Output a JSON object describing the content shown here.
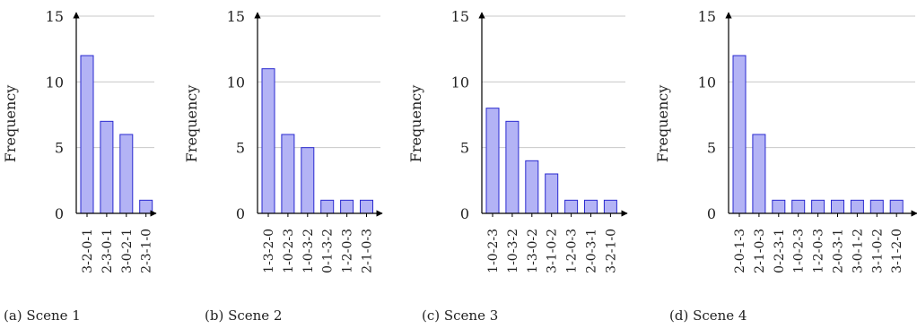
{
  "style": {
    "bar_fill": "#b3b3f5",
    "bar_stroke": "#2a2ad0",
    "grid_color": "#c8c8c8",
    "axis_color": "#000000"
  },
  "chart_data": [
    {
      "type": "bar",
      "caption": "(a) Scene 1",
      "ylabel": "Frequency",
      "ylim": [
        0,
        15
      ],
      "yticks": [
        0,
        5,
        10,
        15
      ],
      "grid": true,
      "categories": [
        "3-2-0-1",
        "2-3-0-1",
        "3-0-2-1",
        "2-3-1-0"
      ],
      "values": [
        12,
        7,
        6,
        1
      ]
    },
    {
      "type": "bar",
      "caption": "(b) Scene 2",
      "ylabel": "Frequency",
      "ylim": [
        0,
        15
      ],
      "yticks": [
        0,
        5,
        10,
        15
      ],
      "grid": true,
      "categories": [
        "1-3-2-0",
        "1-0-2-3",
        "1-0-3-2",
        "0-1-3-2",
        "1-2-0-3",
        "2-1-0-3"
      ],
      "values": [
        11,
        6,
        5,
        1,
        1,
        1
      ]
    },
    {
      "type": "bar",
      "caption": "(c) Scene 3",
      "ylabel": "Frequency",
      "ylim": [
        0,
        15
      ],
      "yticks": [
        0,
        5,
        10,
        15
      ],
      "grid": true,
      "categories": [
        "1-0-2-3",
        "1-0-3-2",
        "1-3-0-2",
        "3-1-0-2",
        "1-2-0-3",
        "2-0-3-1",
        "3-2-1-0"
      ],
      "values": [
        8,
        7,
        4,
        3,
        1,
        1,
        1
      ]
    },
    {
      "type": "bar",
      "caption": "(d) Scene 4",
      "ylabel": "Frequency",
      "ylim": [
        0,
        15
      ],
      "yticks": [
        0,
        5,
        10,
        15
      ],
      "grid": true,
      "categories": [
        "2-0-1-3",
        "2-1-0-3",
        "0-2-3-1",
        "1-0-2-3",
        "1-2-0-3",
        "2-0-3-1",
        "3-0-1-2",
        "3-1-0-2",
        "3-1-2-0"
      ],
      "values": [
        12,
        6,
        1,
        1,
        1,
        1,
        1,
        1,
        1
      ]
    }
  ]
}
